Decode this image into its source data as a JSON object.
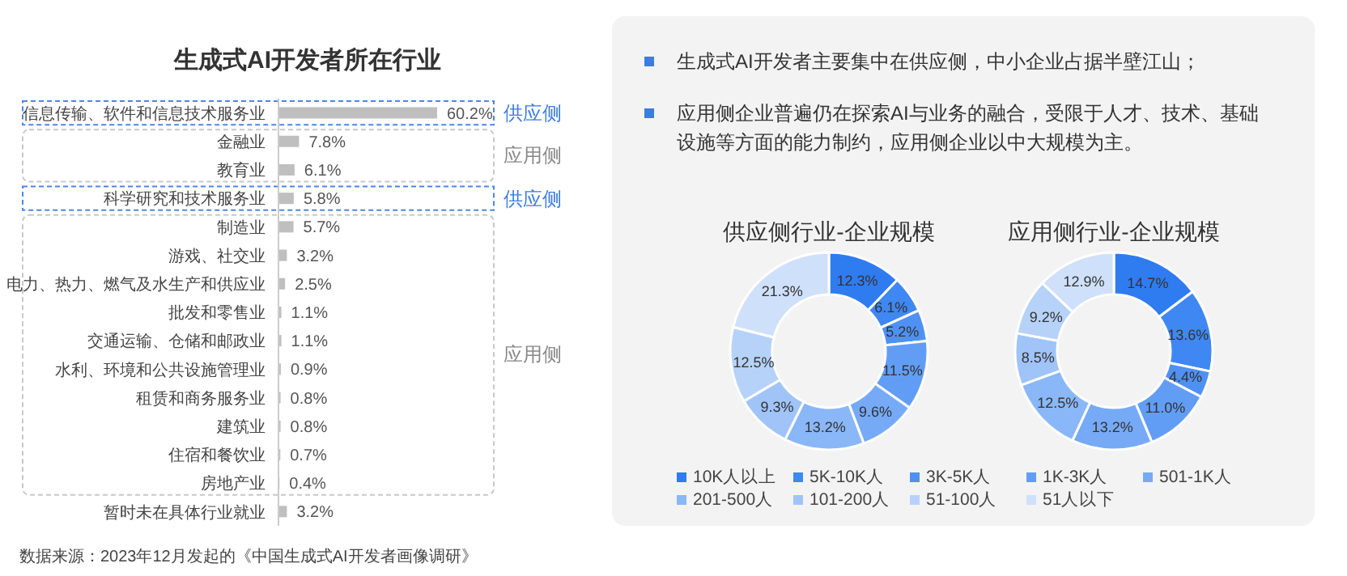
{
  "chart_data": [
    {
      "type": "bar",
      "orientation": "horizontal",
      "title": "生成式AI开发者所在行业",
      "categories": [
        "信息传输、软件和信息技术服务业",
        "金融业",
        "教育业",
        "科学研究和技术服务业",
        "制造业",
        "游戏、社交业",
        "电力、热力、燃气及水生产和供应业",
        "批发和零售业",
        "交通运输、仓储和邮政业",
        "水利、环境和公共设施管理业",
        "租赁和商务服务业",
        "建筑业",
        "住宿和餐饮业",
        "房地产业",
        "暂时未在具体行业就业"
      ],
      "values": [
        60.2,
        7.8,
        6.1,
        5.8,
        5.7,
        3.2,
        2.5,
        1.1,
        1.1,
        0.9,
        0.8,
        0.8,
        0.7,
        0.4,
        3.2
      ],
      "value_labels": [
        "60.2%",
        "7.8%",
        "6.1%",
        "5.8%",
        "5.7%",
        "3.2%",
        "2.5%",
        "1.1%",
        "1.1%",
        "0.9%",
        "0.8%",
        "0.8%",
        "0.7%",
        "0.4%",
        "3.2%"
      ],
      "color": "#bfbfbf",
      "annotations": [
        "供应侧",
        "应用侧",
        "供应侧",
        "应用侧",
        "数据来源：2023年12月发起的《中国生成式AI开发者画像调研》"
      ]
    },
    {
      "type": "other",
      "annotations": [
        "生成式AI开发者主要集中在供应侧，中小企业占据半壁江山；",
        "应用侧企业普遍仍在探索AI与业务的融合，受限于人才、技术、基础设施等方面的能力制约，应用侧企业以中大规模为主。"
      ]
    },
    {
      "type": "donut",
      "title": "供应侧行业-企业规模",
      "categories": [
        "10K人以上",
        "5K-10K人",
        "3K-5K人",
        "1K-3K人",
        "501-1K人",
        "201-500人",
        "101-200人",
        "51-100人",
        "51人以下"
      ],
      "values": [
        12.3,
        6.1,
        5.2,
        11.5,
        9.6,
        13.2,
        9.3,
        12.5,
        21.3
      ],
      "value_labels": [
        "12.3%",
        "6.1%",
        "5.2%",
        "11.5%",
        "9.6%",
        "13.2%",
        "9.3%",
        "12.5%",
        "21.3%"
      ],
      "colors": [
        "#2f7cf0",
        "#3f87f2",
        "#4f91f3",
        "#629df5",
        "#76aaf6",
        "#8ab7f7",
        "#a0c4f8",
        "#b6d2f9",
        "#cfe0fa"
      ],
      "legend": "bottom"
    },
    {
      "type": "donut",
      "title": "应用侧行业-企业规模",
      "categories": [
        null,
        null,
        null,
        null,
        null,
        null,
        null,
        null,
        null
      ],
      "values": [
        14.7,
        13.6,
        4.4,
        11.0,
        13.2,
        12.5,
        8.5,
        9.2,
        12.9
      ],
      "value_labels": [
        "14.7%",
        "13.6%",
        "4.4%",
        "11.0%",
        "13.2%",
        "12.5%",
        "8.5%",
        "9.2%",
        "12.9%"
      ],
      "colors": [
        "#2f7cf0",
        "#3f87f2",
        "#4f91f3",
        "#629df5",
        "#76aaf6",
        "#8ab7f7",
        "#a0c4f8",
        "#b6d2f9",
        "#cfe0fa"
      ]
    }
  ]
}
